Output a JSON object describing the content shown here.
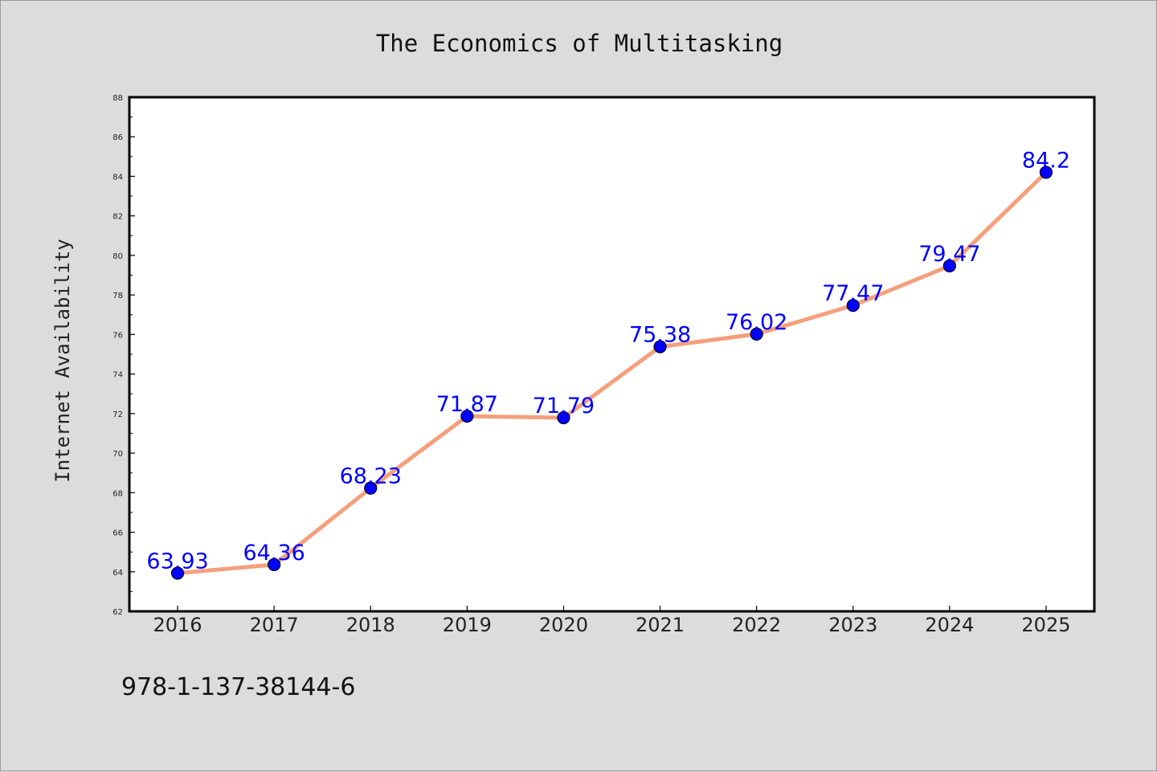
{
  "chart_data": {
    "type": "line",
    "title": "The Economics of Multitasking",
    "xlabel": "",
    "ylabel": "Internet Availability",
    "categories": [
      "2016",
      "2017",
      "2018",
      "2019",
      "2020",
      "2021",
      "2022",
      "2023",
      "2024",
      "2025"
    ],
    "values": [
      63.93,
      64.36,
      68.23,
      71.87,
      71.79,
      75.38,
      76.02,
      77.47,
      79.47,
      84.2
    ],
    "data_labels": [
      "63.93",
      "64.36",
      "68.23",
      "71.87",
      "71.79",
      "75.38",
      "76.02",
      "77.47",
      "79.47",
      "84.2"
    ],
    "ylim": [
      62,
      88
    ],
    "yticks": [
      "62",
      "64",
      "66",
      "68",
      "70",
      "72",
      "74",
      "76",
      "78",
      "80",
      "82",
      "84",
      "86",
      "88"
    ],
    "grid": false,
    "legend": "none",
    "line_color": "#f4a07c",
    "marker_color": "#0000ff",
    "label_color": "#0000ff"
  },
  "footer": {
    "isbn": "978-1-137-38144-6"
  }
}
